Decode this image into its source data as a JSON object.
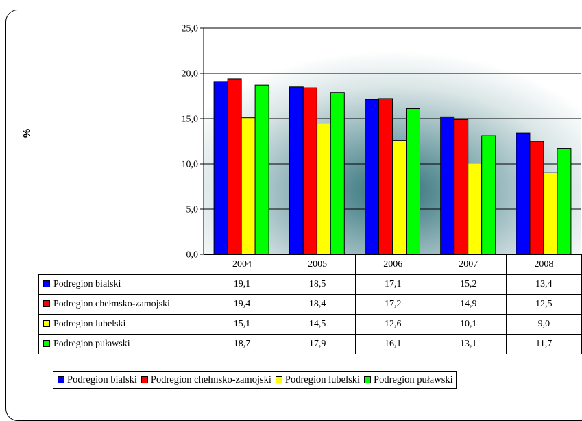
{
  "chart_data": {
    "type": "bar",
    "categories": [
      "2004",
      "2005",
      "2006",
      "2007",
      "2008"
    ],
    "series": [
      {
        "name": "Podregion bialski",
        "color": "#0000ff",
        "values": [
          19.1,
          18.5,
          17.1,
          15.2,
          13.4
        ],
        "labels": [
          "19,1",
          "18,5",
          "17,1",
          "15,2",
          "13,4"
        ]
      },
      {
        "name": "Podregion chełmsko-zamojski",
        "color": "#ff0000",
        "values": [
          19.4,
          18.4,
          17.2,
          14.9,
          12.5
        ],
        "labels": [
          "19,4",
          "18,4",
          "17,2",
          "14,9",
          "12,5"
        ]
      },
      {
        "name": "Podregion lubelski",
        "color": "#ffff00",
        "values": [
          15.1,
          14.5,
          12.6,
          10.1,
          9.0
        ],
        "labels": [
          "15,1",
          "14,5",
          "12,6",
          "10,1",
          "9,0"
        ]
      },
      {
        "name": "Podregion puławski",
        "color": "#00ff00",
        "values": [
          18.7,
          17.9,
          16.1,
          13.1,
          11.7
        ],
        "labels": [
          "18,7",
          "17,9",
          "16,1",
          "13,1",
          "11,7"
        ]
      }
    ],
    "ylabel": "%",
    "ylim": [
      0,
      25
    ],
    "yticks": [
      0,
      5,
      10,
      15,
      20,
      25
    ],
    "ytick_labels": [
      "0,0",
      "5,0",
      "10,0",
      "15,0",
      "20,0",
      "25,0"
    ],
    "grid": true,
    "data_table": true,
    "legend_position": "bottom"
  }
}
